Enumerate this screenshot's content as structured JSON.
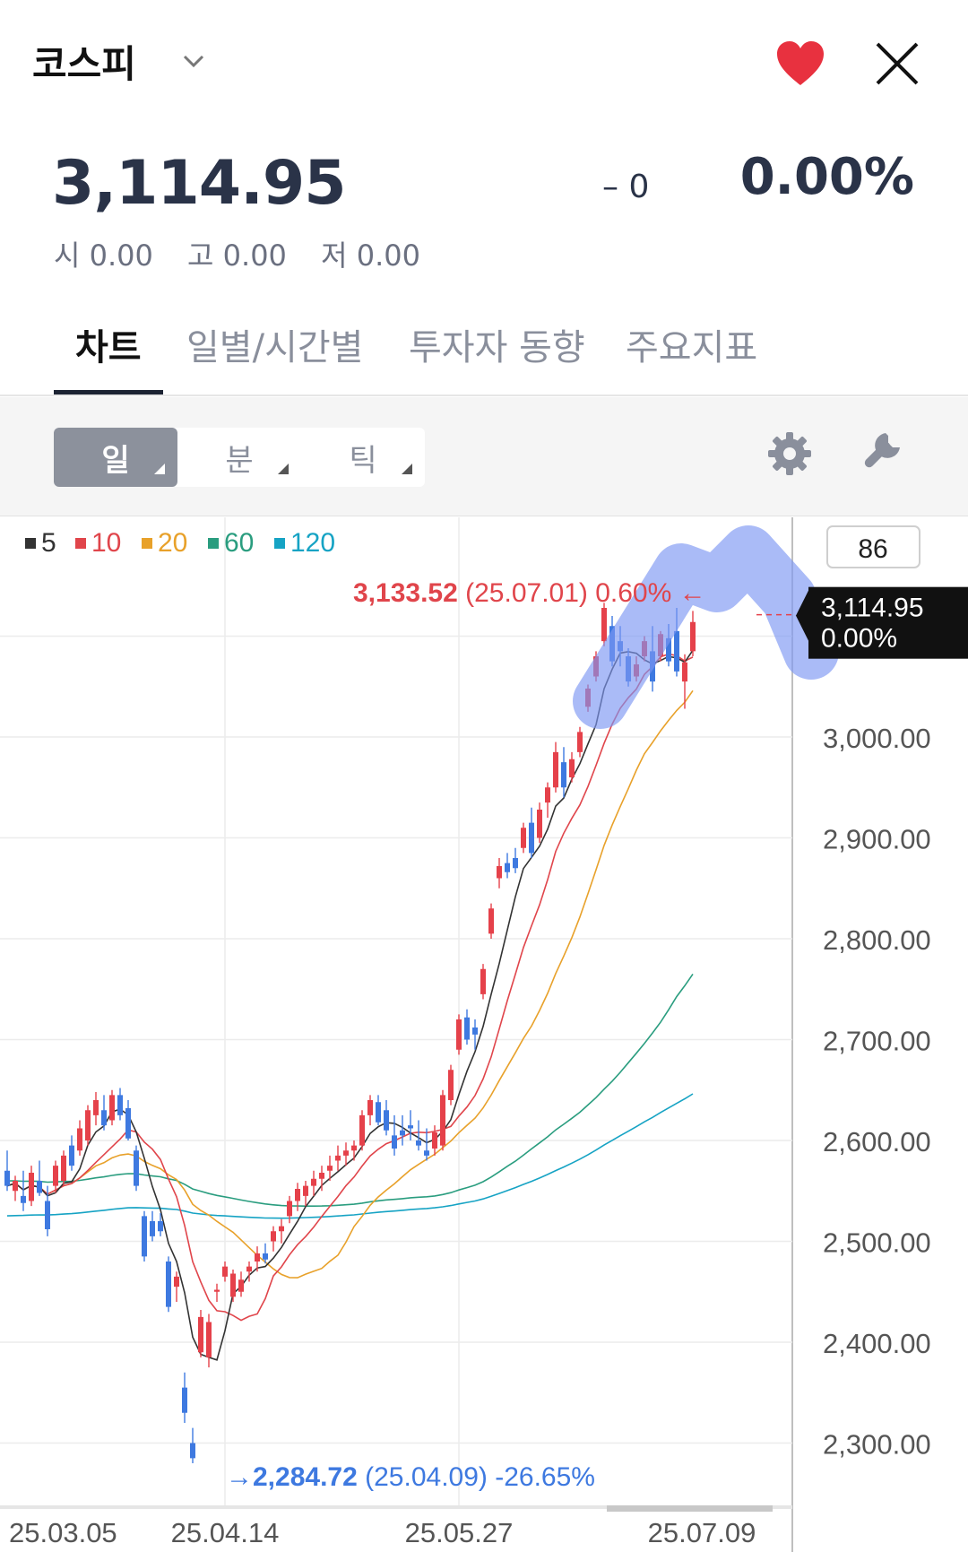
{
  "header": {
    "title": "코스피",
    "icons": {
      "dropdown": "chevron-down-icon",
      "favorite": "heart-icon",
      "close": "close-icon"
    },
    "favorite_color": "#e8313f"
  },
  "quote": {
    "price": "3,114.95",
    "change": "– 0",
    "change_pct": "0.00%",
    "open": "시 0.00",
    "high": "고 0.00",
    "low": "저 0.00"
  },
  "tabs": [
    "차트",
    "일별/시간별",
    "투자자 동향",
    "주요지표"
  ],
  "toolbar": {
    "periods": [
      "일",
      "분",
      "틱"
    ],
    "active_period": "일",
    "icons": [
      "gear-icon",
      "wrench-icon"
    ]
  },
  "chart_data": {
    "type": "candlestick",
    "legend": [
      {
        "label": "5",
        "color": "#333333"
      },
      {
        "label": "10",
        "color": "#e0454b"
      },
      {
        "label": "20",
        "color": "#e8a12a"
      },
      {
        "label": "60",
        "color": "#2a9d7f"
      },
      {
        "label": "120",
        "color": "#16a3c4"
      }
    ],
    "count_label": "86",
    "up_color": "#e5414a",
    "down_color": "#3e79e0",
    "ylim": [
      2220,
      3220
    ],
    "y_ticks": [
      "3,000.00",
      "2,900.00",
      "2,800.00",
      "2,700.00",
      "2,600.00",
      "2,500.00",
      "2,400.00",
      "2,300.00"
    ],
    "y_tick_values": [
      3000,
      2900,
      2800,
      2700,
      2600,
      2500,
      2400,
      2300
    ],
    "x_ticks": [
      "25.03.05",
      "25.04.14",
      "25.05.27",
      "25.07.09"
    ],
    "x_tick_index": [
      0,
      27,
      56,
      85
    ],
    "current_price_label": [
      "3,114.95",
      "0.00%"
    ],
    "current_price": 3114.95,
    "high_annotation": {
      "value": "3,133.52",
      "date": "(25.07.01)",
      "pct": "0.60%",
      "arrow": "←"
    },
    "low_annotation": {
      "value": "2,284.72",
      "date": "(25.04.09)",
      "pct": "-26.65%",
      "arrow": "→"
    },
    "highlight_color": "#7d96f2",
    "candles": [
      [
        2570,
        2590,
        2550,
        2555
      ],
      [
        2550,
        2565,
        2540,
        2560
      ],
      [
        2545,
        2570,
        2530,
        2538
      ],
      [
        2540,
        2575,
        2535,
        2568
      ],
      [
        2560,
        2580,
        2545,
        2548
      ],
      [
        2540,
        2555,
        2505,
        2512
      ],
      [
        2555,
        2580,
        2548,
        2575
      ],
      [
        2560,
        2590,
        2555,
        2585
      ],
      [
        2595,
        2605,
        2570,
        2575
      ],
      [
        2590,
        2620,
        2585,
        2612
      ],
      [
        2600,
        2635,
        2595,
        2630
      ],
      [
        2625,
        2648,
        2615,
        2640
      ],
      [
        2630,
        2645,
        2610,
        2615
      ],
      [
        2620,
        2650,
        2615,
        2645
      ],
      [
        2645,
        2652,
        2620,
        2625
      ],
      [
        2632,
        2640,
        2600,
        2602
      ],
      [
        2590,
        2595,
        2550,
        2555
      ],
      [
        2525,
        2530,
        2480,
        2485
      ],
      [
        2520,
        2530,
        2500,
        2505
      ],
      [
        2520,
        2528,
        2505,
        2510
      ],
      [
        2480,
        2485,
        2430,
        2435
      ],
      [
        2455,
        2470,
        2440,
        2465
      ],
      [
        2355,
        2370,
        2320,
        2330
      ],
      [
        2300,
        2315,
        2280,
        2285
      ],
      [
        2390,
        2432,
        2385,
        2425
      ],
      [
        2385,
        2428,
        2375,
        2420
      ],
      [
        2450,
        2458,
        2440,
        2452
      ],
      [
        2465,
        2480,
        2460,
        2475
      ],
      [
        2445,
        2472,
        2440,
        2468
      ],
      [
        2450,
        2470,
        2445,
        2462
      ],
      [
        2470,
        2480,
        2460,
        2475
      ],
      [
        2480,
        2495,
        2470,
        2488
      ],
      [
        2488,
        2498,
        2478,
        2482
      ],
      [
        2500,
        2515,
        2490,
        2510
      ],
      [
        2510,
        2522,
        2498,
        2515
      ],
      [
        2525,
        2545,
        2518,
        2540
      ],
      [
        2540,
        2558,
        2530,
        2552
      ],
      [
        2545,
        2560,
        2535,
        2555
      ],
      [
        2555,
        2570,
        2545,
        2562
      ],
      [
        2562,
        2575,
        2550,
        2568
      ],
      [
        2570,
        2585,
        2560,
        2575
      ],
      [
        2580,
        2595,
        2570,
        2585
      ],
      [
        2585,
        2598,
        2575,
        2590
      ],
      [
        2590,
        2600,
        2580,
        2595
      ],
      [
        2595,
        2630,
        2590,
        2625
      ],
      [
        2625,
        2645,
        2615,
        2640
      ],
      [
        2638,
        2645,
        2615,
        2618
      ],
      [
        2630,
        2640,
        2605,
        2610
      ],
      [
        2605,
        2625,
        2585,
        2592
      ],
      [
        2610,
        2625,
        2595,
        2605
      ],
      [
        2615,
        2630,
        2600,
        2612
      ],
      [
        2600,
        2620,
        2590,
        2595
      ],
      [
        2590,
        2612,
        2580,
        2585
      ],
      [
        2592,
        2615,
        2585,
        2608
      ],
      [
        2595,
        2650,
        2590,
        2645
      ],
      [
        2640,
        2675,
        2635,
        2670
      ],
      [
        2690,
        2725,
        2685,
        2720
      ],
      [
        2722,
        2730,
        2695,
        2700
      ],
      [
        2712,
        2720,
        2690,
        2705
      ],
      [
        2745,
        2775,
        2740,
        2770
      ],
      [
        2805,
        2835,
        2800,
        2830
      ],
      [
        2860,
        2880,
        2850,
        2872
      ],
      [
        2875,
        2885,
        2860,
        2866
      ],
      [
        2880,
        2890,
        2865,
        2870
      ],
      [
        2890,
        2915,
        2885,
        2910
      ],
      [
        2915,
        2930,
        2880,
        2885
      ],
      [
        2900,
        2935,
        2895,
        2928
      ],
      [
        2935,
        2955,
        2920,
        2950
      ],
      [
        2950,
        2995,
        2945,
        2985
      ],
      [
        2975,
        2990,
        2940,
        2950
      ],
      [
        2960,
        2985,
        2955,
        2978
      ],
      [
        2985,
        3010,
        2980,
        3005
      ],
      [
        3030,
        3052,
        3025,
        3048
      ],
      [
        3060,
        3085,
        3055,
        3080
      ],
      [
        3095,
        3133,
        3090,
        3128
      ],
      [
        3110,
        3120,
        3070,
        3075
      ],
      [
        3095,
        3110,
        3070,
        3085
      ],
      [
        3080,
        3088,
        3050,
        3055
      ],
      [
        3060,
        3080,
        3055,
        3072
      ],
      [
        3080,
        3100,
        3075,
        3095
      ],
      [
        3085,
        3110,
        3045,
        3055
      ],
      [
        3080,
        3105,
        3075,
        3102
      ],
      [
        3098,
        3112,
        3070,
        3075
      ],
      [
        3105,
        3128,
        3060,
        3065
      ],
      [
        3055,
        3082,
        3028,
        3074
      ],
      [
        3085,
        3125,
        3080,
        3114
      ]
    ]
  }
}
